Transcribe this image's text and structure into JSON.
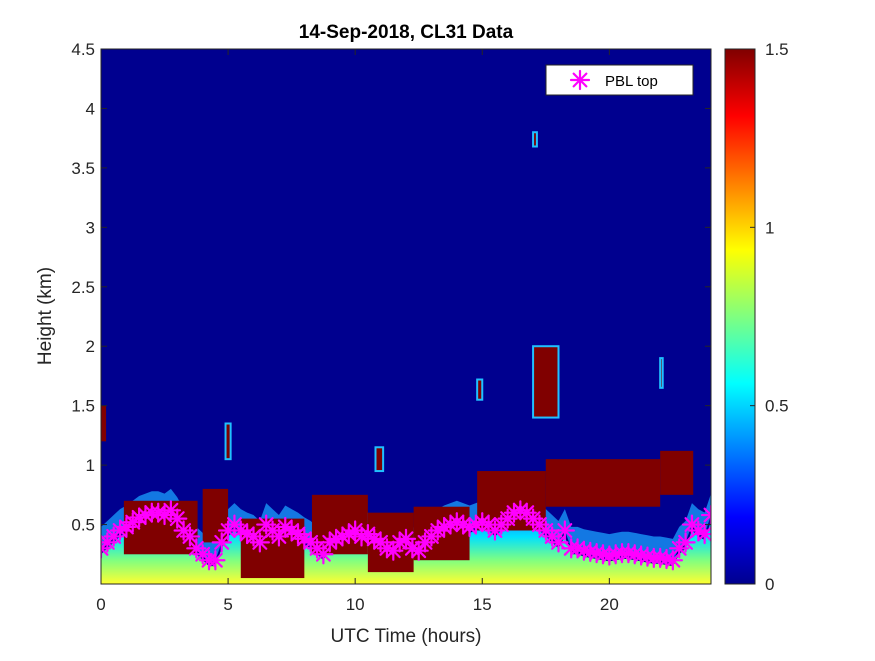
{
  "chart_data": {
    "type": "heatmap",
    "title": "14-Sep-2018, CL31 Data",
    "xlabel": "UTC Time (hours)",
    "ylabel": "Height (km)",
    "xlim": [
      0,
      24
    ],
    "ylim": [
      0,
      4.5
    ],
    "x_ticks": [
      "0",
      "5",
      "10",
      "15",
      "20"
    ],
    "y_ticks": [
      "0.5",
      "1",
      "1.5",
      "2",
      "2.5",
      "3",
      "3.5",
      "4",
      "4.5"
    ],
    "colorbar": {
      "min": 0,
      "max": 1.5,
      "ticks": [
        "0",
        "0.5",
        "1",
        "1.5"
      ],
      "colormap": "jet"
    },
    "legend": {
      "position": "top-right",
      "entries": [
        "PBL top"
      ]
    },
    "colors": {
      "background_field": "#00008f",
      "high": "#800000",
      "pbl_marker": "#ff00ff"
    },
    "series": [
      {
        "name": "PBL top",
        "marker": "asterisk",
        "x": [
          0.0,
          0.25,
          0.5,
          0.75,
          1.0,
          1.25,
          1.5,
          1.75,
          2.0,
          2.25,
          2.5,
          2.75,
          3.0,
          3.25,
          3.5,
          3.75,
          4.0,
          4.25,
          4.5,
          4.75,
          5.0,
          5.25,
          5.5,
          5.75,
          6.0,
          6.25,
          6.5,
          6.75,
          7.0,
          7.25,
          7.5,
          7.75,
          8.0,
          8.25,
          8.5,
          8.75,
          9.0,
          9.25,
          9.5,
          9.75,
          10.0,
          10.25,
          10.5,
          10.75,
          11.0,
          11.25,
          11.5,
          11.75,
          12.0,
          12.25,
          12.5,
          12.75,
          13.0,
          13.25,
          13.5,
          13.75,
          14.0,
          14.25,
          14.5,
          14.75,
          15.0,
          15.25,
          15.5,
          15.75,
          16.0,
          16.25,
          16.5,
          16.75,
          17.0,
          17.25,
          17.5,
          17.75,
          18.0,
          18.25,
          18.5,
          18.75,
          19.0,
          19.25,
          19.5,
          19.75,
          20.0,
          20.25,
          20.5,
          20.75,
          21.0,
          21.25,
          21.5,
          21.75,
          22.0,
          22.25,
          22.5,
          22.75,
          23.0,
          23.25,
          23.5,
          23.75,
          24.0
        ],
        "y": [
          0.3,
          0.35,
          0.4,
          0.45,
          0.48,
          0.52,
          0.56,
          0.58,
          0.6,
          0.6,
          0.58,
          0.62,
          0.55,
          0.45,
          0.4,
          0.3,
          0.25,
          0.2,
          0.2,
          0.35,
          0.45,
          0.5,
          0.45,
          0.42,
          0.4,
          0.35,
          0.5,
          0.45,
          0.4,
          0.48,
          0.45,
          0.42,
          0.38,
          0.35,
          0.3,
          0.25,
          0.35,
          0.38,
          0.4,
          0.42,
          0.45,
          0.4,
          0.42,
          0.38,
          0.35,
          0.3,
          0.28,
          0.35,
          0.38,
          0.3,
          0.28,
          0.35,
          0.4,
          0.45,
          0.48,
          0.5,
          0.52,
          0.5,
          0.48,
          0.5,
          0.52,
          0.5,
          0.45,
          0.5,
          0.55,
          0.6,
          0.62,
          0.6,
          0.55,
          0.5,
          0.45,
          0.4,
          0.35,
          0.45,
          0.3,
          0.3,
          0.28,
          0.27,
          0.26,
          0.25,
          0.24,
          0.25,
          0.26,
          0.26,
          0.25,
          0.24,
          0.23,
          0.22,
          0.22,
          0.21,
          0.2,
          0.3,
          0.35,
          0.5,
          0.45,
          0.42,
          0.58
        ]
      }
    ]
  }
}
